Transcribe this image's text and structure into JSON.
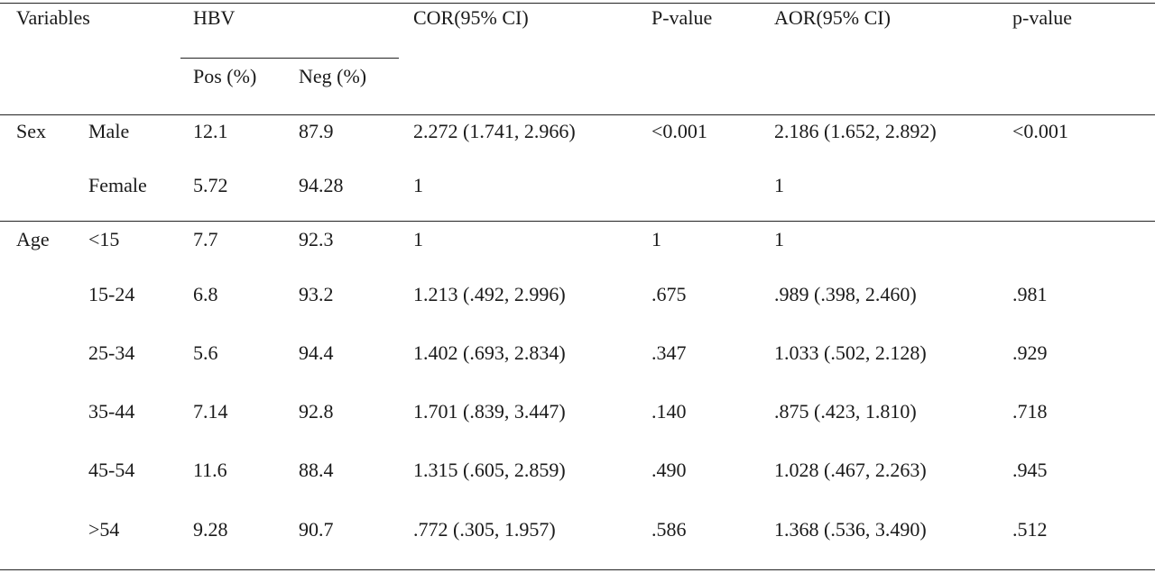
{
  "header": {
    "variables": "Variables",
    "hbv": "HBV",
    "pos": "Pos (%)",
    "neg": "Neg (%)",
    "cor": "COR(95% CI)",
    "p_value_1": "P-value",
    "aor": "AOR(95% CI)",
    "p_value_2": "p-value"
  },
  "groups": [
    {
      "variable": "Sex",
      "rows": [
        {
          "category": "Male",
          "pos": "12.1",
          "neg": "87.9",
          "cor": "2.272 (1.741, 2.966)",
          "p1": "<0.001",
          "aor": "2.186 (1.652, 2.892)",
          "p2": "<0.001"
        },
        {
          "category": "Female",
          "pos": "5.72",
          "neg": "94.28",
          "cor": "1",
          "p1": "",
          "aor": "1",
          "p2": ""
        }
      ]
    },
    {
      "variable": "Age",
      "rows": [
        {
          "category": "<15",
          "pos": "7.7",
          "neg": "92.3",
          "cor": "1",
          "p1": "1",
          "aor": "1",
          "p2": ""
        },
        {
          "category": "15-24",
          "pos": "6.8",
          "neg": "93.2",
          "cor": "1.213 (.492, 2.996)",
          "p1": ".675",
          "aor": ".989 (.398, 2.460)",
          "p2": ".981"
        },
        {
          "category": "25-34",
          "pos": "5.6",
          "neg": "94.4",
          "cor": "1.402 (.693, 2.834)",
          "p1": ".347",
          "aor": "1.033 (.502, 2.128)",
          "p2": ".929"
        },
        {
          "category": "35-44",
          "pos": "7.14",
          "neg": "92.8",
          "cor": "1.701 (.839, 3.447)",
          "p1": ".140",
          "aor": ".875 (.423, 1.810)",
          "p2": ".718"
        },
        {
          "category": "45-54",
          "pos": "11.6",
          "neg": "88.4",
          "cor": "1.315 (.605, 2.859)",
          "p1": ".490",
          "aor": "1.028 (.467, 2.263)",
          "p2": ".945"
        },
        {
          "category": ">54",
          "pos": "9.28",
          "neg": "90.7",
          "cor": ".772 (.305, 1.957)",
          "p1": ".586",
          "aor": "1.368 (.536, 3.490)",
          "p2": ".512"
        }
      ]
    }
  ]
}
